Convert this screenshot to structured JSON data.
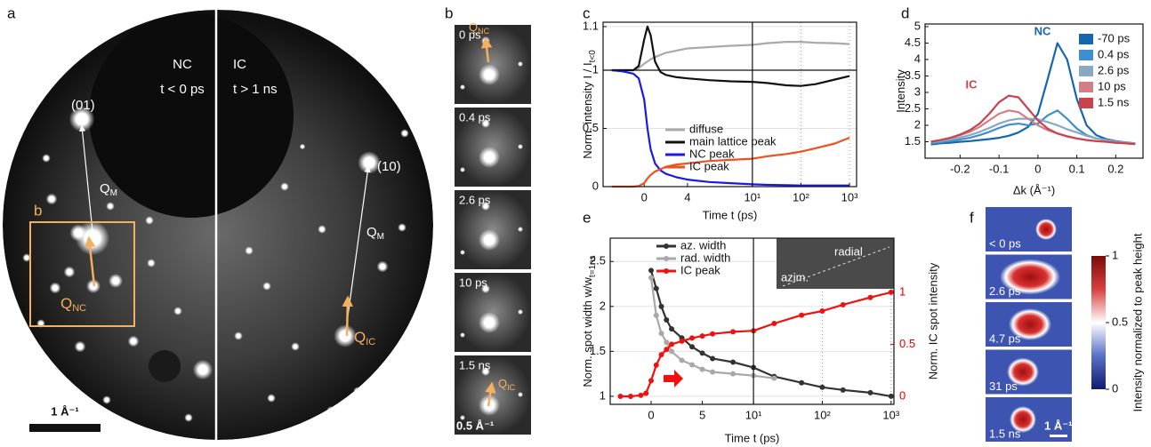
{
  "panels": {
    "a": {
      "label": "a",
      "nc_label": "NC",
      "nc_time": "t < 0 ps",
      "ic_label": "IC",
      "ic_time": "t > 1 ns",
      "spot_01": "(01)",
      "spot_10": "(10)",
      "q": "Q",
      "qm_sub": "M",
      "qnc_sub": "NC",
      "qic_sub": "IC",
      "box_label": "b",
      "scale": "1 Å⁻¹"
    },
    "b": {
      "label": "b",
      "frames": [
        "0 ps",
        "0.4 ps",
        "2.6 ps",
        "10 ps",
        "1.5 ns"
      ],
      "q": "Q",
      "qnc_sub": "NC",
      "qic_sub": "IC",
      "scale": "0.5 Å⁻¹"
    },
    "f": {
      "label": "f",
      "frames": [
        "< 0 ps",
        "2.6 ps",
        "4.7 ps",
        "31 ps",
        "1.5 ns"
      ],
      "scale": "1 Å⁻¹",
      "colorbar_ticks": [
        0,
        0.5,
        1
      ],
      "colorbar_label": "Intensity normalized to peak height"
    }
  },
  "chart_data": [
    {
      "type": "line",
      "panel_label": "c",
      "xlabel": "Time t (ps)",
      "ylabel": "Norm. intensity I / I",
      "ylabel_sub": "t<0",
      "x": [
        -3,
        -2,
        -1,
        -0.5,
        0,
        0.3,
        0.6,
        1,
        1.5,
        2,
        3,
        4,
        6,
        8,
        10,
        20,
        50,
        100,
        200,
        500,
        1000
      ],
      "xlim": [
        -3.8,
        1400
      ],
      "xbreak": 10,
      "xticks": [
        0,
        4,
        {
          "value": 10,
          "label": "10¹"
        },
        {
          "value": 100,
          "label": "10²"
        },
        {
          "value": 1000,
          "label": "10³"
        }
      ],
      "ylim": [
        0,
        1.11
      ],
      "ybreak": 1,
      "yticks": [
        0,
        0.5,
        1,
        1.1
      ],
      "grid": true,
      "legend": "center",
      "series": [
        {
          "name": "diffuse",
          "color": "#aaaaaa",
          "values": [
            1.0,
            1.0,
            1.0,
            1.005,
            1.015,
            1.02,
            1.025,
            1.03,
            1.035,
            1.04,
            1.045,
            1.05,
            1.053,
            1.056,
            1.058,
            1.062,
            1.065,
            1.065,
            1.063,
            1.062,
            1.06
          ]
        },
        {
          "name": "main lattice peak",
          "color": "#111111",
          "values": [
            1.0,
            1.0,
            1.0,
            1.01,
            1.07,
            1.1,
            1.08,
            1.02,
            0.985,
            0.96,
            0.94,
            0.93,
            0.915,
            0.905,
            0.9,
            0.89,
            0.87,
            0.865,
            0.88,
            0.92,
            0.95
          ]
        },
        {
          "name": "NC peak",
          "color": "#1a1ae0",
          "values": [
            1.0,
            0.99,
            0.97,
            0.93,
            0.75,
            0.5,
            0.32,
            0.2,
            0.14,
            0.11,
            0.08,
            0.06,
            0.04,
            0.03,
            0.02,
            0.015,
            0.012,
            0.01,
            0.01,
            0.01,
            0.01
          ]
        },
        {
          "name": "IC peak",
          "color": "#f0501e",
          "values": [
            0,
            0,
            0,
            0.005,
            0.03,
            0.07,
            0.1,
            0.13,
            0.15,
            0.17,
            0.19,
            0.2,
            0.22,
            0.23,
            0.24,
            0.26,
            0.28,
            0.3,
            0.33,
            0.37,
            0.42
          ]
        }
      ]
    },
    {
      "type": "line",
      "panel_label": "d",
      "xlabel": "Δk (Å⁻¹)",
      "ylabel": "Intensity",
      "x": [
        -0.275,
        -0.25,
        -0.225,
        -0.2,
        -0.175,
        -0.15,
        -0.125,
        -0.1,
        -0.075,
        -0.05,
        -0.025,
        0,
        0.025,
        0.05,
        0.075,
        0.1,
        0.125,
        0.15,
        0.175,
        0.2,
        0.225,
        0.25
      ],
      "xlim": [
        -0.29,
        0.27
      ],
      "xticks": [
        -0.2,
        -0.1,
        0,
        0.1,
        0.2
      ],
      "ylim": [
        1,
        5.08
      ],
      "yticks": [
        1.5,
        2,
        2.5,
        3,
        3.5,
        4,
        4.5,
        5
      ],
      "legend": "upper right",
      "annotations": [
        {
          "text": "NC",
          "color": "#1565b0"
        },
        {
          "text": "IC",
          "color": "#c9424c"
        }
      ],
      "series": [
        {
          "name": "-70 ps",
          "color": "#1565b0",
          "values": [
            1.42,
            1.45,
            1.47,
            1.5,
            1.52,
            1.55,
            1.58,
            1.62,
            1.68,
            1.78,
            1.95,
            2.35,
            3.4,
            4.5,
            4.0,
            2.8,
            2.0,
            1.7,
            1.58,
            1.52,
            1.48,
            1.45
          ]
        },
        {
          "name": "0.4 ps",
          "color": "#3e8fd0",
          "values": [
            1.45,
            1.48,
            1.52,
            1.57,
            1.62,
            1.7,
            1.8,
            1.92,
            2.02,
            2.05,
            2.0,
            2.05,
            2.3,
            2.45,
            2.2,
            1.9,
            1.7,
            1.6,
            1.55,
            1.5,
            1.47,
            1.45
          ]
        },
        {
          "name": "2.6 ps",
          "color": "#8aa9c0",
          "values": [
            1.48,
            1.52,
            1.57,
            1.63,
            1.7,
            1.8,
            1.92,
            2.05,
            2.15,
            2.2,
            2.2,
            2.18,
            2.1,
            2.0,
            1.88,
            1.78,
            1.68,
            1.6,
            1.55,
            1.5,
            1.47,
            1.45
          ]
        },
        {
          "name": "10 ps",
          "color": "#d47d86",
          "values": [
            1.5,
            1.55,
            1.62,
            1.7,
            1.8,
            1.95,
            2.15,
            2.35,
            2.45,
            2.4,
            2.2,
            2.0,
            1.85,
            1.75,
            1.67,
            1.6,
            1.55,
            1.52,
            1.5,
            1.47,
            1.45,
            1.43
          ]
        },
        {
          "name": "1.5 ns",
          "color": "#c9424c",
          "values": [
            1.5,
            1.55,
            1.62,
            1.72,
            1.85,
            2.05,
            2.35,
            2.7,
            2.9,
            2.85,
            2.5,
            2.15,
            1.9,
            1.75,
            1.66,
            1.6,
            1.55,
            1.52,
            1.5,
            1.47,
            1.45,
            1.43
          ]
        }
      ]
    },
    {
      "type": "line",
      "panel_label": "e",
      "xlabel": "Time t (ps)",
      "ylabel": "Norm. spot width  w/w",
      "ylabel_sub": "t=1ns",
      "y2label": "Norm. IC spot intensity",
      "y2_axis_color": "#e00000",
      "x": [
        -3,
        -2,
        -1,
        -0.5,
        0,
        0.5,
        1,
        1.5,
        2,
        3,
        4,
        5,
        6,
        8,
        10,
        20,
        50,
        100,
        200,
        500,
        1000
      ],
      "xlim": [
        -4,
        1100
      ],
      "xbreak": 10,
      "xticks": [
        0,
        5,
        {
          "value": 10,
          "label": "10¹"
        },
        {
          "value": 100,
          "label": "10²"
        },
        {
          "value": 1000,
          "label": "10³"
        }
      ],
      "ylim": [
        0.91,
        2.76
      ],
      "yticks": [
        1,
        1.5,
        2,
        2.5
      ],
      "y2lim": [
        -0.077,
        1.52
      ],
      "y2ticks": [
        0,
        0.5,
        1
      ],
      "grid": true,
      "legend": "upper left",
      "inset_labels": [
        "radial",
        "azim."
      ],
      "series": [
        {
          "name": "az. width",
          "color": "#333333",
          "marker": true,
          "values": [
            null,
            null,
            null,
            null,
            2.4,
            2.2,
            2.0,
            1.85,
            1.75,
            1.65,
            1.55,
            1.48,
            1.42,
            1.38,
            1.32,
            1.22,
            1.15,
            1.1,
            1.07,
            1.04,
            1.0
          ]
        },
        {
          "name": "rad. width",
          "color": "#a8a8a8",
          "marker": true,
          "values": [
            null,
            null,
            null,
            null,
            2.32,
            1.9,
            1.7,
            1.6,
            1.5,
            1.4,
            1.35,
            1.3,
            1.27,
            1.25,
            1.23,
            1.2,
            null,
            null,
            null,
            null,
            null
          ]
        },
        {
          "name": "IC peak",
          "color": "#f01010",
          "marker": true,
          "axis": "y2",
          "values": [
            0,
            0,
            0.01,
            0.03,
            0.15,
            0.3,
            0.4,
            0.45,
            0.5,
            0.53,
            0.56,
            0.58,
            0.6,
            0.62,
            0.63,
            0.7,
            0.78,
            0.82,
            0.88,
            0.95,
            1.0
          ]
        }
      ]
    }
  ]
}
